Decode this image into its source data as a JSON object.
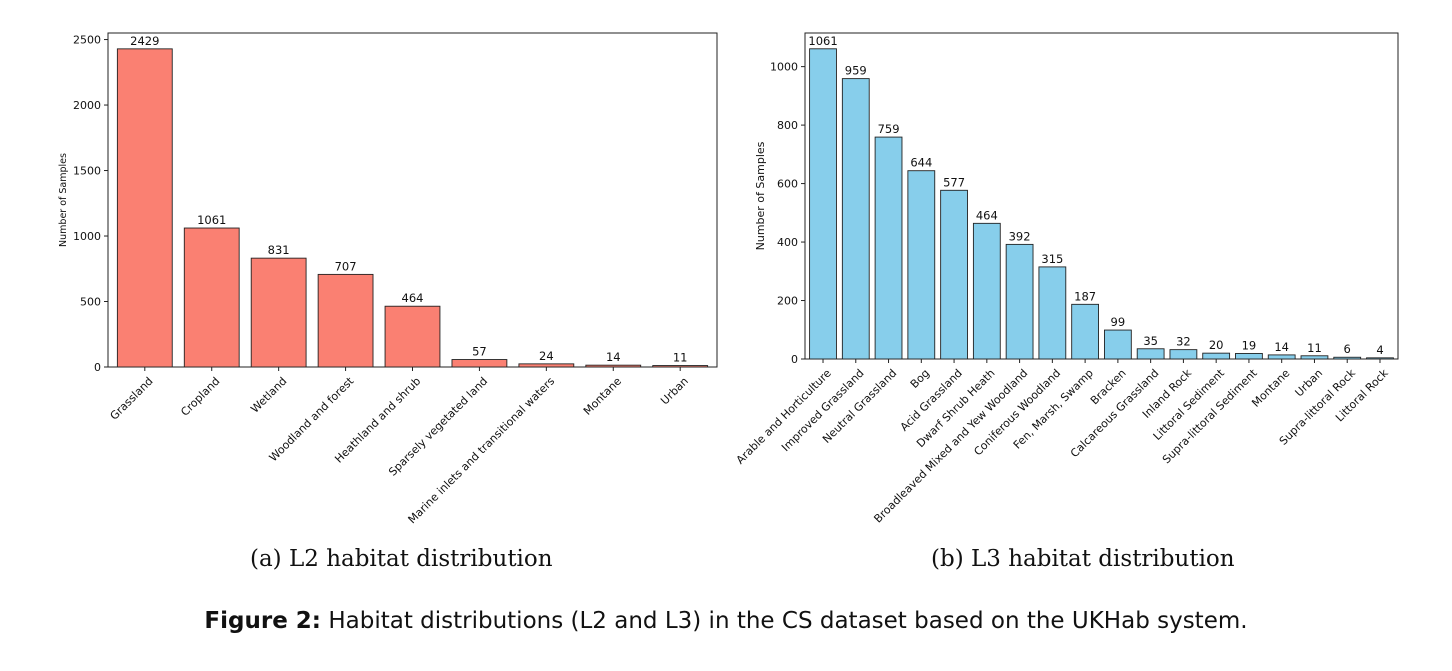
{
  "chart_data": [
    {
      "type": "bar",
      "categories": [
        "Grassland",
        "Cropland",
        "Wetland",
        "Woodland and forest",
        "Heathland and shrub",
        "Sparsely vegetated land",
        "Marine inlets and transitional waters",
        "Montane",
        "Urban"
      ],
      "values": [
        2429,
        1061,
        831,
        707,
        464,
        57,
        24,
        14,
        11
      ],
      "ylabel": "Number of Samples",
      "ylim": [
        0,
        2550
      ],
      "yticks": [
        0,
        500,
        1000,
        1500,
        2000,
        2500
      ],
      "grid": false,
      "color": "#fa8072"
    },
    {
      "type": "bar",
      "categories": [
        "Arable and Horticulture",
        "Improved Grassland",
        "Neutral Grassland",
        "Bog",
        "Acid Grassland",
        "Dwarf Shrub Heath",
        "Broadleaved Mixed and Yew Woodland",
        "Coniferous Woodland",
        "Fen, Marsh, Swamp",
        "Bracken",
        "Calcareous Grassland",
        "Inland Rock",
        "Littoral Sediment",
        "Supra-littoral Sediment",
        "Montane",
        "Urban",
        "Supra-littoral Rock",
        "Littoral Rock"
      ],
      "values": [
        1061,
        959,
        759,
        644,
        577,
        464,
        392,
        315,
        187,
        99,
        35,
        32,
        20,
        19,
        14,
        11,
        6,
        4
      ],
      "ylabel": "Number of Samples",
      "ylim": [
        0,
        1115
      ],
      "yticks": [
        0,
        200,
        400,
        600,
        800,
        1000
      ],
      "grid": false,
      "color": "#87ceeb"
    }
  ],
  "captions": {
    "sub_a": "(a) L2 habitat distribution",
    "sub_b": "(b) L3 habitat distribution",
    "figure_label": "Figure 2:",
    "figure_text": " Habitat distributions (L2 and L3) in the CS dataset based on the UKHab system."
  }
}
